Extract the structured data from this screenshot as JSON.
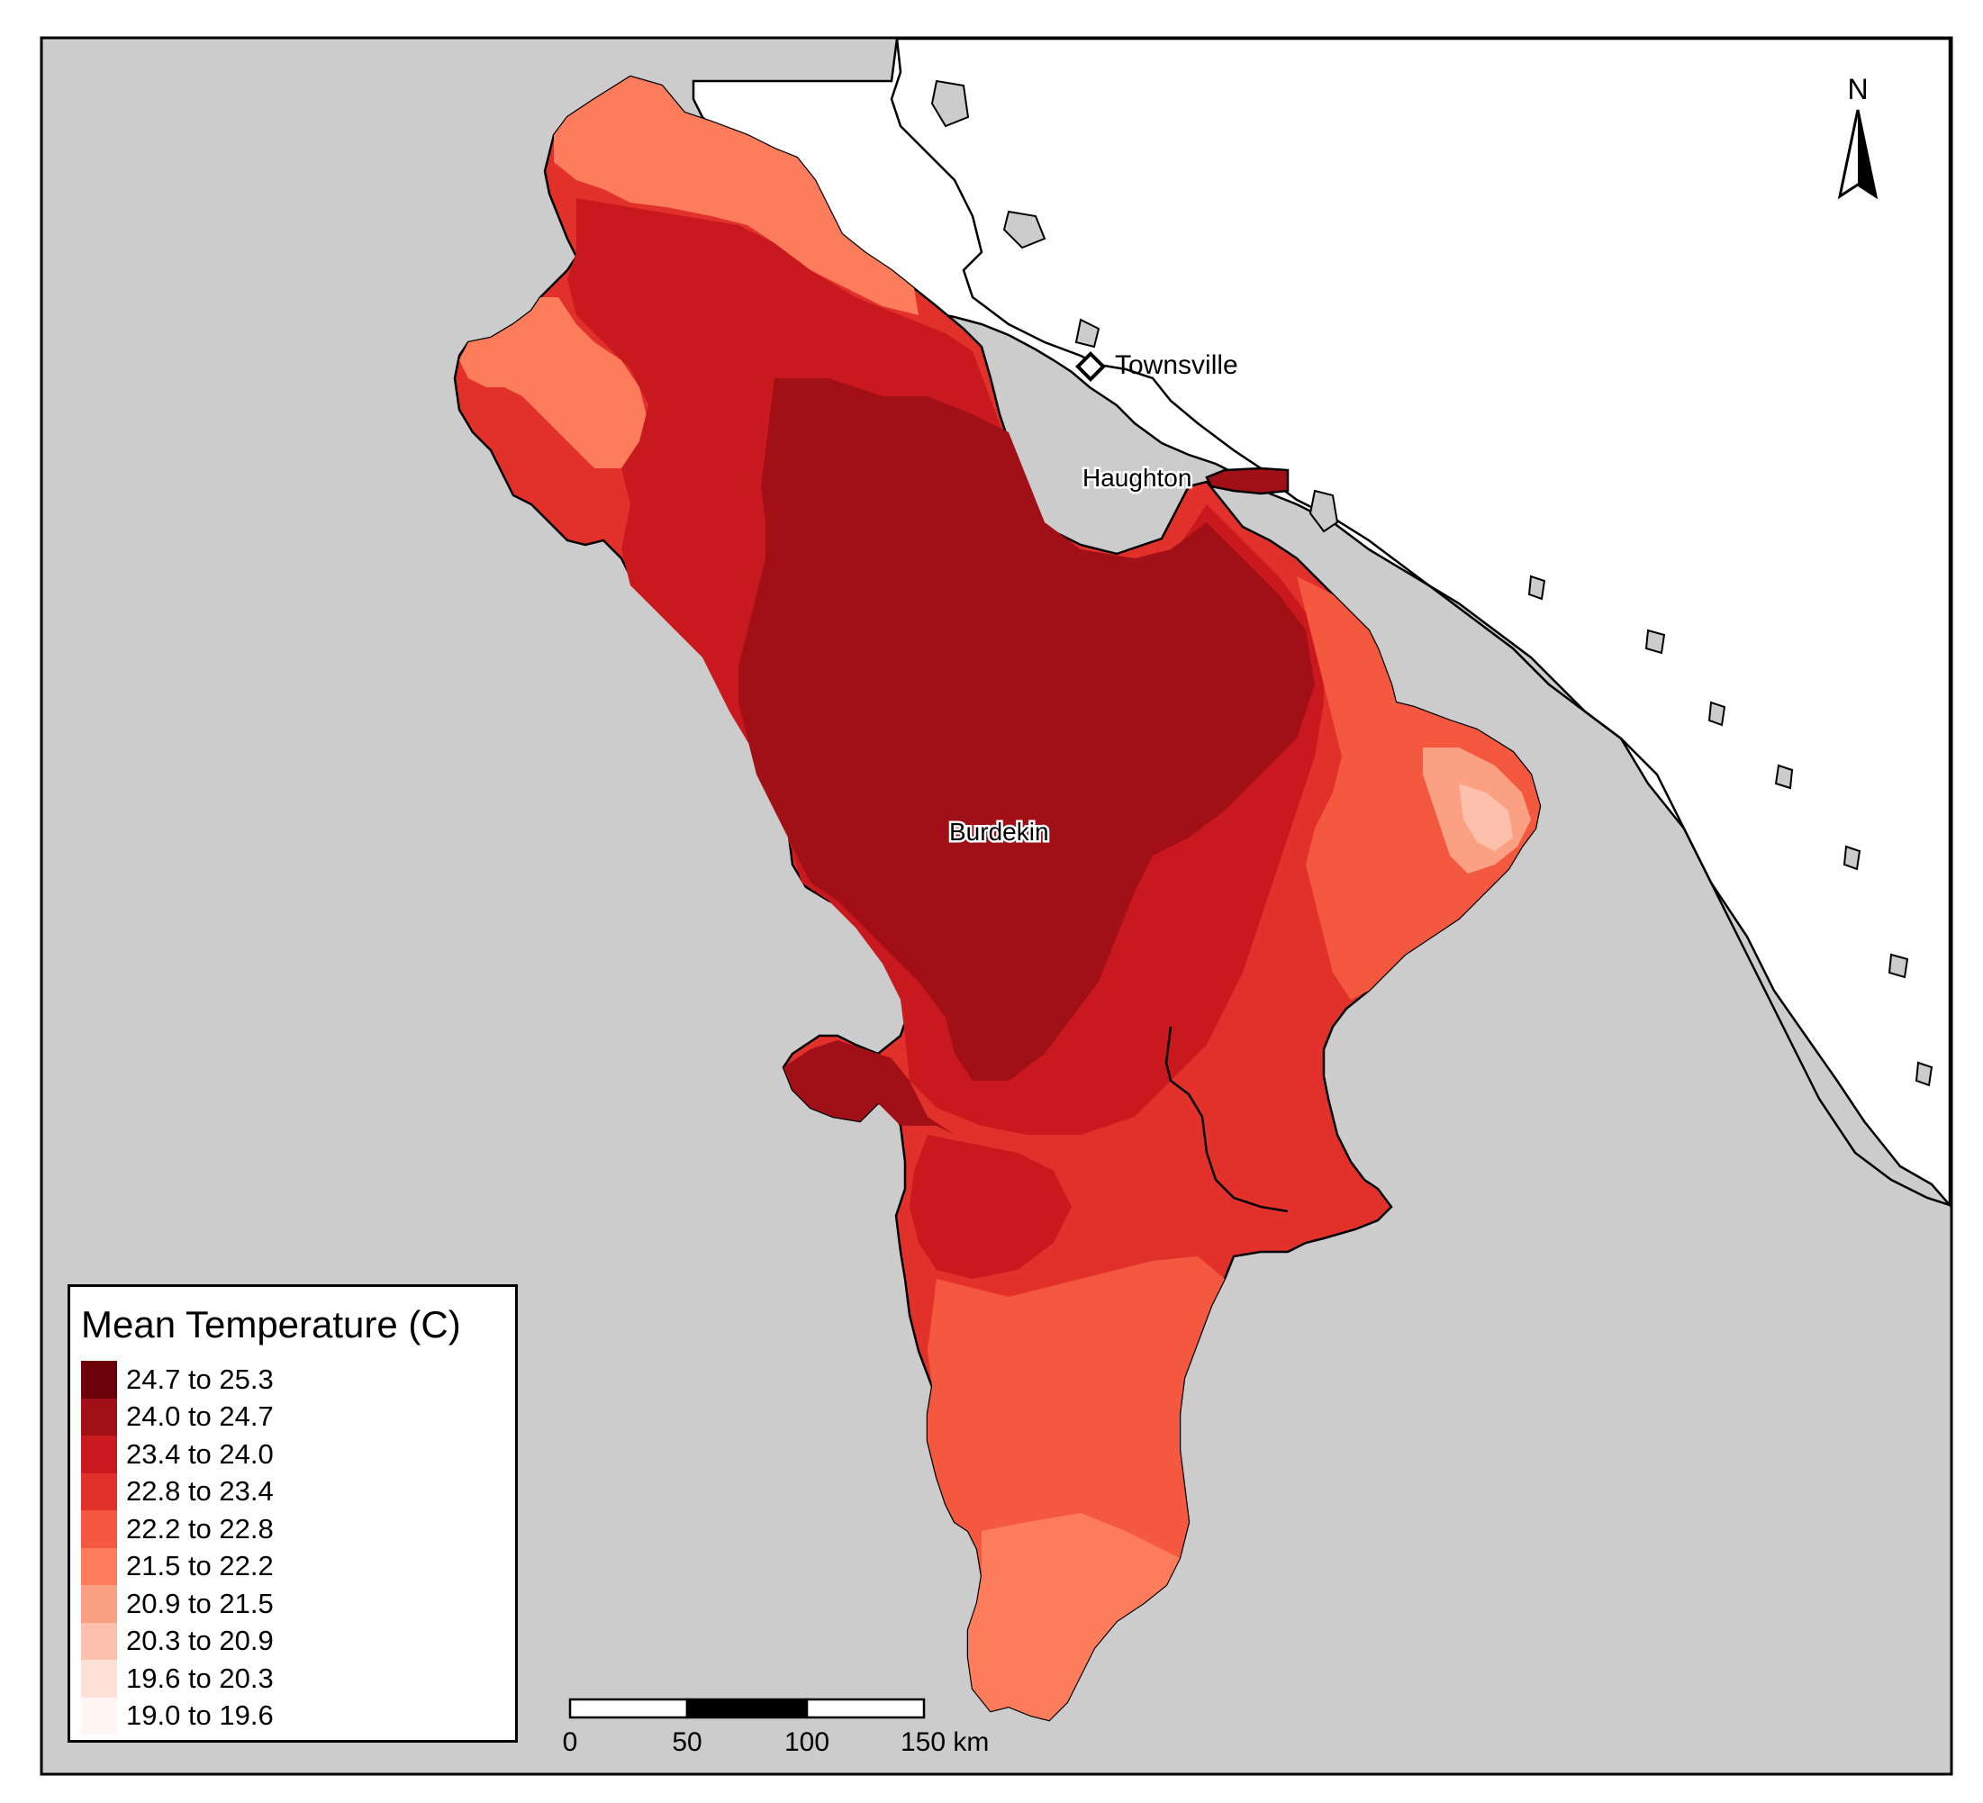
{
  "map": {
    "north_arrow_label": "N",
    "places": {
      "townsville": "Townsville",
      "haughton": "Haughton",
      "burdekin": "Burdekin"
    },
    "colors": {
      "background_land": "#cccccc",
      "sea": "#ffffff",
      "outline": "#000000"
    }
  },
  "legend": {
    "title": "Mean Temperature (C)",
    "classes": [
      {
        "label": "24.7 to 25.3",
        "color": "#6b0009"
      },
      {
        "label": "24.0 to 24.7",
        "color": "#a11017"
      },
      {
        "label": "23.4 to 24.0",
        "color": "#c9181e"
      },
      {
        "label": "22.8 to 23.4",
        "color": "#e2312b"
      },
      {
        "label": "22.2 to 22.8",
        "color": "#f4593f"
      },
      {
        "label": "21.5 to 22.2",
        "color": "#fc7c5c"
      },
      {
        "label": "20.9 to 21.5",
        "color": "#fca083"
      },
      {
        "label": "20.3 to 20.9",
        "color": "#fdc0ad"
      },
      {
        "label": "19.6 to 20.3",
        "color": "#fee0d6"
      },
      {
        "label": "19.0 to 19.6",
        "color": "#fff5f2"
      }
    ]
  },
  "scale_bar": {
    "labels": [
      "0",
      "50",
      "100",
      "150 km"
    ]
  }
}
